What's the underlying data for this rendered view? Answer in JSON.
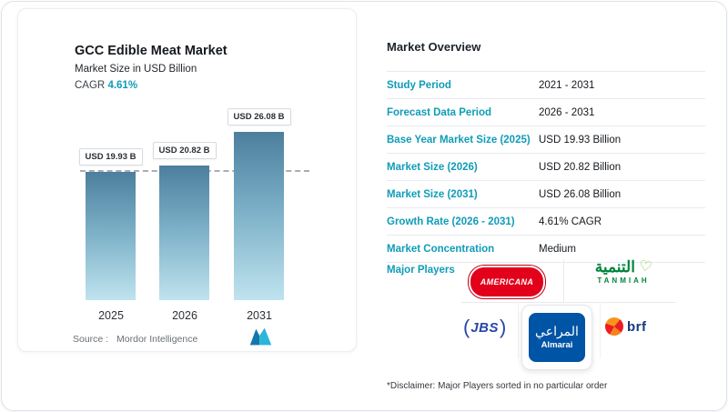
{
  "left_card": {
    "title": "GCC Edible Meat Market",
    "subtitle": "Market Size in USD Billion",
    "cagr_label": "CAGR",
    "cagr_value": "4.61%",
    "source_label": "Source :",
    "source_value": "Mordor Intelligence"
  },
  "chart_data": {
    "type": "bar",
    "title": "GCC Edible Meat Market",
    "ylabel": "Market Size in USD Billion",
    "categories": [
      "2025",
      "2026",
      "2031"
    ],
    "values": [
      19.93,
      20.82,
      26.08
    ],
    "bar_labels": [
      "USD 19.93 B",
      "USD 20.82 B",
      "USD 26.08 B"
    ],
    "dashed_line_value": 19.93,
    "ylim": [
      0,
      26.08
    ],
    "grid": false,
    "legend": "none"
  },
  "overview": {
    "title": "Market Overview",
    "rows": [
      {
        "label": "Study Period",
        "value": "2021 - 2031"
      },
      {
        "label": "Forecast Data Period",
        "value": "2026 - 2031"
      },
      {
        "label": "Base Year Market Size (2025)",
        "value": "USD 19.93 Billion"
      },
      {
        "label": "Market Size (2026)",
        "value": "USD 20.82 Billion"
      },
      {
        "label": "Market Size (2031)",
        "value": "USD 26.08 Billion"
      },
      {
        "label": "Growth Rate (2026 - 2031)",
        "value": "4.61% CAGR"
      },
      {
        "label": "Market Concentration",
        "value": "Medium"
      }
    ],
    "major_players_label": "Major Players",
    "players": [
      {
        "name": "AMERICANA"
      },
      {
        "name_ar": "التنمية",
        "name": "TANMIAH"
      },
      {
        "paren_left": "(",
        "name": "JBS",
        "paren_right": ")"
      },
      {
        "name_ar": "المراعي",
        "name": "Almarai"
      },
      {
        "name": "brf"
      }
    ],
    "disclaimer": "*Disclaimer: Major Players sorted in no particular order"
  },
  "colors": {
    "accent_teal": "#0f9cb8",
    "bar_gradient_top": "#4c7f9d",
    "bar_gradient_bottom": "#bfe3ee",
    "americana_red": "#e2001a",
    "tanmiah_green": "#00843d",
    "jbs_blue": "#2746a8",
    "almarai_blue": "#0054a5",
    "brf_navy": "#123a7d"
  }
}
